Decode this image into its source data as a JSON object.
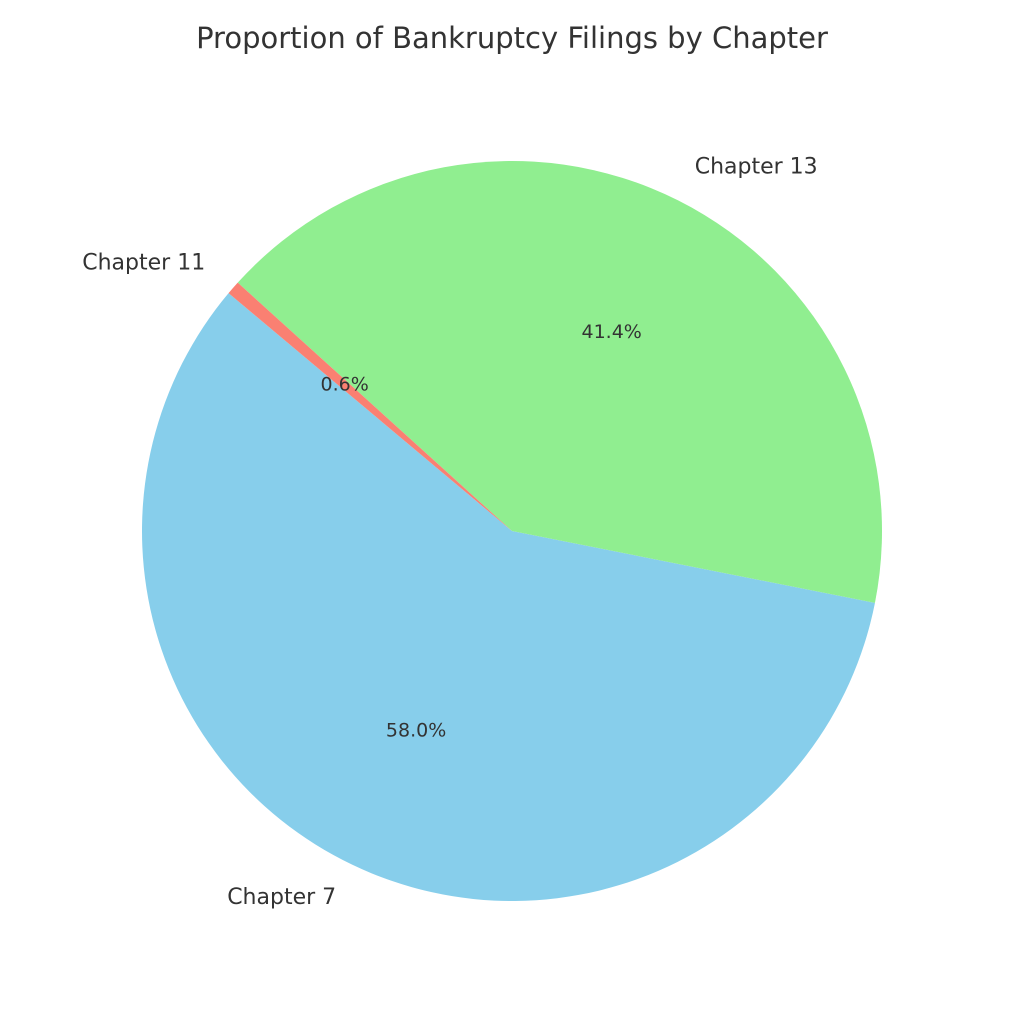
{
  "chart_data": {
    "type": "pie",
    "title": "Proportion of Bankruptcy Filings by Chapter",
    "categories": [
      "Chapter 7",
      "Chapter 13",
      "Chapter 11"
    ],
    "values": [
      58.0,
      41.4,
      0.6
    ],
    "value_labels": [
      "58.0%",
      "41.4%",
      "0.6%"
    ],
    "colors": [
      "#87ceeb",
      "#90ee90",
      "#fa8072"
    ]
  }
}
